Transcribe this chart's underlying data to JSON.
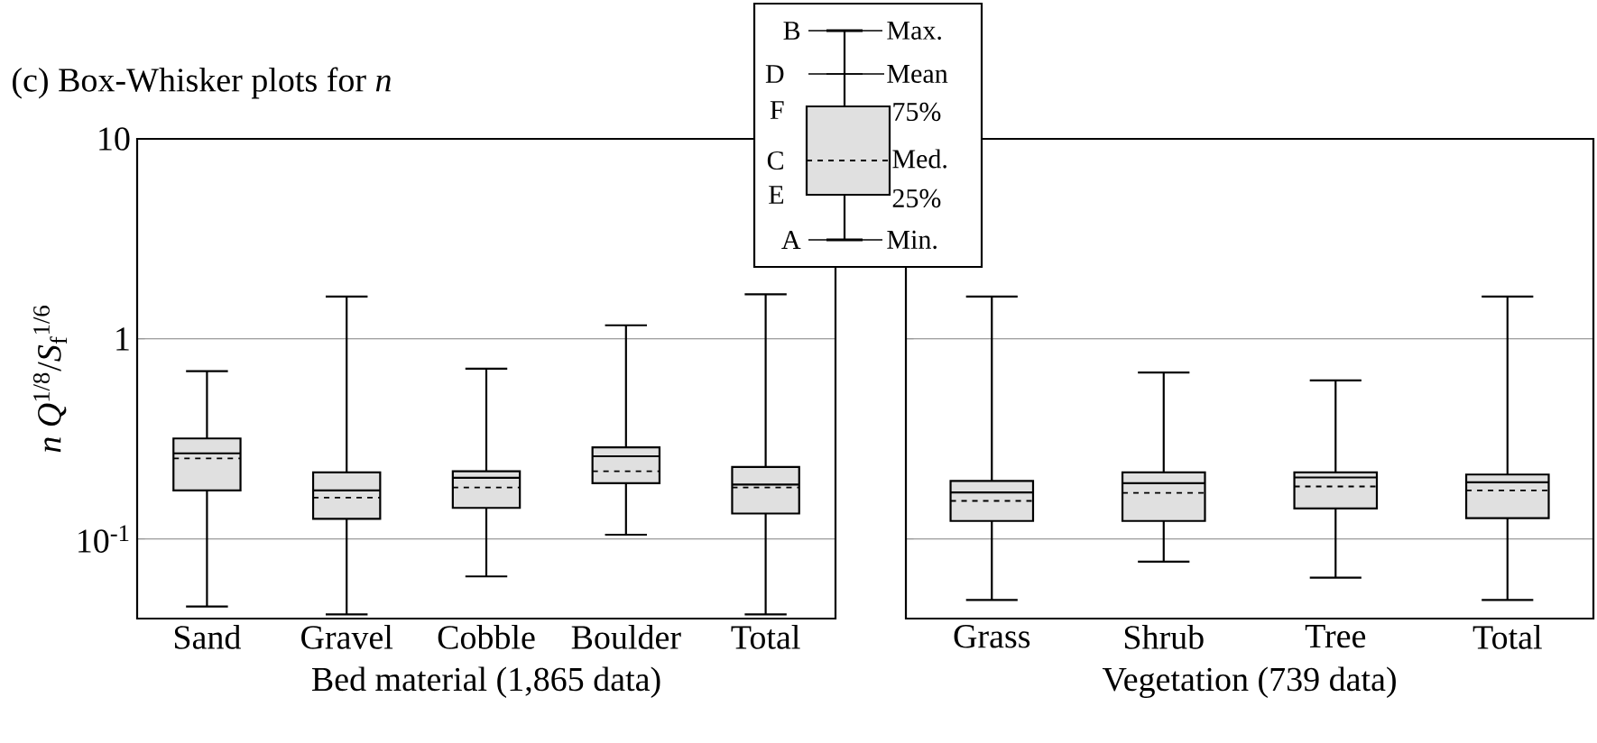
{
  "chart_data": [
    {
      "type": "box",
      "title": "(c) Box-Whisker plots for *n*",
      "xlabel": "Bed material (1,865 data)",
      "ylabel": "*n Q*$^{1/8}$/*S*$_{f}$$^{1/6}$",
      "categories": [
        "Sand",
        "Gravel",
        "Cobble",
        "Boulder",
        "Total"
      ],
      "boxes": [
        {
          "low": 0.046,
          "q1": 0.175,
          "median": 0.253,
          "q3": 0.318,
          "high": 0.69,
          "mean": 0.268
        },
        {
          "low": 0.042,
          "q1": 0.126,
          "median": 0.161,
          "q3": 0.215,
          "high": 1.63,
          "mean": 0.175
        },
        {
          "low": 0.065,
          "q1": 0.143,
          "median": 0.181,
          "q3": 0.218,
          "high": 0.71,
          "mean": 0.202
        },
        {
          "low": 0.105,
          "q1": 0.19,
          "median": 0.218,
          "q3": 0.287,
          "high": 1.17,
          "mean": 0.259
        },
        {
          "low": 0.042,
          "q1": 0.134,
          "median": 0.181,
          "q3": 0.229,
          "high": 1.67,
          "mean": 0.187
        }
      ],
      "log": "y",
      "ylim": [
        0.04,
        10
      ],
      "yticks": [
        10,
        1,
        {
          "value": 0.1,
          "label": "10$^{-1}$"
        }
      ],
      "grid": "y",
      "annotations": [
        "B",
        "Max.",
        "D",
        "Mean",
        "F",
        "75%",
        "C",
        "Med.",
        "E",
        "25%",
        "A",
        "Min."
      ]
    },
    {
      "type": "box",
      "xlabel": "Vegetation (739 data)",
      "categories": [
        "Grass",
        "Shrub",
        "Tree",
        "Total"
      ],
      "boxes": [
        {
          "low": 0.0495,
          "q1": 0.123,
          "median": 0.155,
          "q3": 0.195,
          "high": 1.63,
          "mean": 0.171
        },
        {
          "low": 0.077,
          "q1": 0.123,
          "median": 0.17,
          "q3": 0.215,
          "high": 0.68,
          "mean": 0.19
        },
        {
          "low": 0.064,
          "q1": 0.142,
          "median": 0.183,
          "q3": 0.215,
          "high": 0.62,
          "mean": 0.203
        },
        {
          "low": 0.0495,
          "q1": 0.127,
          "median": 0.175,
          "q3": 0.21,
          "high": 1.63,
          "mean": 0.192
        }
      ],
      "log": "y",
      "ylim": [
        0.04,
        10
      ],
      "yticks": [
        10,
        1,
        0.1
      ],
      "grid": "y",
      "tick_labels": "x"
    }
  ]
}
